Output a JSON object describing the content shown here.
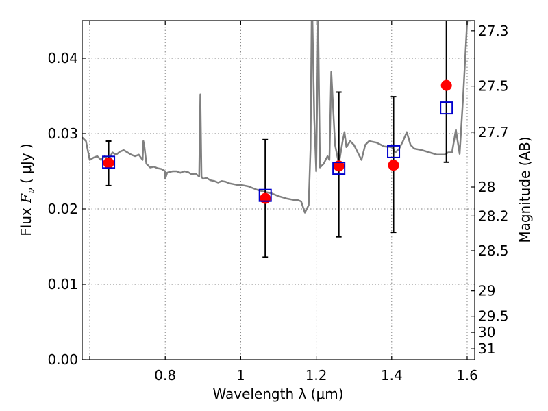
{
  "chart_data": {
    "type": "scatter",
    "title": "",
    "xlabel": "Wavelength  λ (μm)",
    "ylabel": "Flux  F_ν  ( μJy )",
    "y2label": "Magnitude (AB)",
    "xlim": [
      0.58,
      1.62
    ],
    "ylim": [
      0.0,
      0.045
    ],
    "grid": true,
    "x_ticks": [
      {
        "value": 0.6,
        "label": ""
      },
      {
        "value": 0.8,
        "label": "0.8"
      },
      {
        "value": 1.0,
        "label": "1"
      },
      {
        "value": 1.2,
        "label": "1.2"
      },
      {
        "value": 1.4,
        "label": "1.4"
      },
      {
        "value": 1.6,
        "label": "1.6"
      }
    ],
    "y_ticks": [
      {
        "value": 0.0,
        "label": "0.00"
      },
      {
        "value": 0.01,
        "label": "0.01"
      },
      {
        "value": 0.02,
        "label": "0.02"
      },
      {
        "value": 0.03,
        "label": "0.03"
      },
      {
        "value": 0.04,
        "label": "0.04"
      }
    ],
    "y2_ticks": [
      {
        "value": 27.3,
        "label": "27.3"
      },
      {
        "value": 27.5,
        "label": "27.5"
      },
      {
        "value": 27.7,
        "label": "27.7"
      },
      {
        "value": 28.0,
        "label": "28"
      },
      {
        "value": 28.2,
        "label": "28.2"
      },
      {
        "value": 28.5,
        "label": "28.5"
      },
      {
        "value": 29.0,
        "label": "29"
      },
      {
        "value": 29.5,
        "label": "29.5"
      },
      {
        "value": 30.0,
        "label": "30"
      },
      {
        "value": 31.0,
        "label": "31"
      }
    ],
    "series": [
      {
        "kind": "line",
        "color": "#808080",
        "x": [
          0.58,
          0.59,
          0.6,
          0.61,
          0.62,
          0.63,
          0.64,
          0.65,
          0.66,
          0.67,
          0.68,
          0.69,
          0.7,
          0.71,
          0.72,
          0.73,
          0.74,
          0.742,
          0.745,
          0.75,
          0.76,
          0.77,
          0.78,
          0.79,
          0.8,
          0.8,
          0.805,
          0.81,
          0.82,
          0.83,
          0.84,
          0.85,
          0.86,
          0.87,
          0.88,
          0.89,
          0.893,
          0.896,
          0.9,
          0.91,
          0.92,
          0.93,
          0.94,
          0.95,
          0.96,
          0.97,
          0.98,
          0.99,
          1.0,
          1.02,
          1.04,
          1.06,
          1.08,
          1.1,
          1.12,
          1.14,
          1.15,
          1.16,
          1.17,
          1.18,
          1.185,
          1.188,
          1.19,
          1.195,
          1.2,
          1.205,
          1.21,
          1.22,
          1.23,
          1.235,
          1.24,
          1.25,
          1.26,
          1.27,
          1.275,
          1.28,
          1.29,
          1.3,
          1.31,
          1.32,
          1.33,
          1.34,
          1.36,
          1.38,
          1.4,
          1.41,
          1.42,
          1.43,
          1.44,
          1.45,
          1.46,
          1.48,
          1.5,
          1.52,
          1.54,
          1.55,
          1.56,
          1.57,
          1.58,
          1.59,
          1.6,
          1.61
        ],
        "y": [
          0.0295,
          0.029,
          0.0265,
          0.0268,
          0.027,
          0.0265,
          0.027,
          0.0265,
          0.0275,
          0.0272,
          0.0276,
          0.0278,
          0.0275,
          0.0272,
          0.027,
          0.0272,
          0.0265,
          0.029,
          0.0282,
          0.026,
          0.0255,
          0.0256,
          0.0254,
          0.0253,
          0.025,
          0.024,
          0.0248,
          0.0249,
          0.025,
          0.025,
          0.0248,
          0.025,
          0.0249,
          0.0246,
          0.0247,
          0.0243,
          0.0352,
          0.0243,
          0.024,
          0.0241,
          0.0238,
          0.0237,
          0.0235,
          0.0237,
          0.0236,
          0.0234,
          0.0233,
          0.0232,
          0.0232,
          0.023,
          0.0226,
          0.0223,
          0.0221,
          0.0217,
          0.0214,
          0.0212,
          0.0212,
          0.021,
          0.0195,
          0.0205,
          0.028,
          0.045,
          0.045,
          0.032,
          0.025,
          0.045,
          0.0255,
          0.026,
          0.027,
          0.0265,
          0.0382,
          0.0285,
          0.026,
          0.029,
          0.0302,
          0.0282,
          0.029,
          0.0285,
          0.0275,
          0.0265,
          0.0285,
          0.029,
          0.0288,
          0.0283,
          0.0282,
          0.0275,
          0.028,
          0.029,
          0.0302,
          0.0285,
          0.028,
          0.0278,
          0.0275,
          0.0272,
          0.0272,
          0.0275,
          0.0275,
          0.0305,
          0.0273,
          0.0355,
          0.045,
          0.045
        ]
      },
      {
        "kind": "points",
        "marker": "circle",
        "color": "#ff0000",
        "x": [
          0.65,
          1.065,
          1.26,
          1.405,
          1.545
        ],
        "y": [
          0.0261,
          0.0214,
          0.0257,
          0.0258,
          0.0364
        ]
      },
      {
        "kind": "points",
        "marker": "square",
        "color": "#0000cc",
        "x": [
          0.65,
          1.065,
          1.26,
          1.405,
          1.545
        ],
        "y": [
          0.0262,
          0.0218,
          0.0254,
          0.0276,
          0.0334
        ],
        "yerr_low": [
          0.0031,
          0.0082,
          0.0091,
          0.0107,
          0.0072
        ],
        "yerr_high": [
          0.0028,
          0.0074,
          0.0101,
          0.0073,
          0.012
        ]
      }
    ]
  }
}
